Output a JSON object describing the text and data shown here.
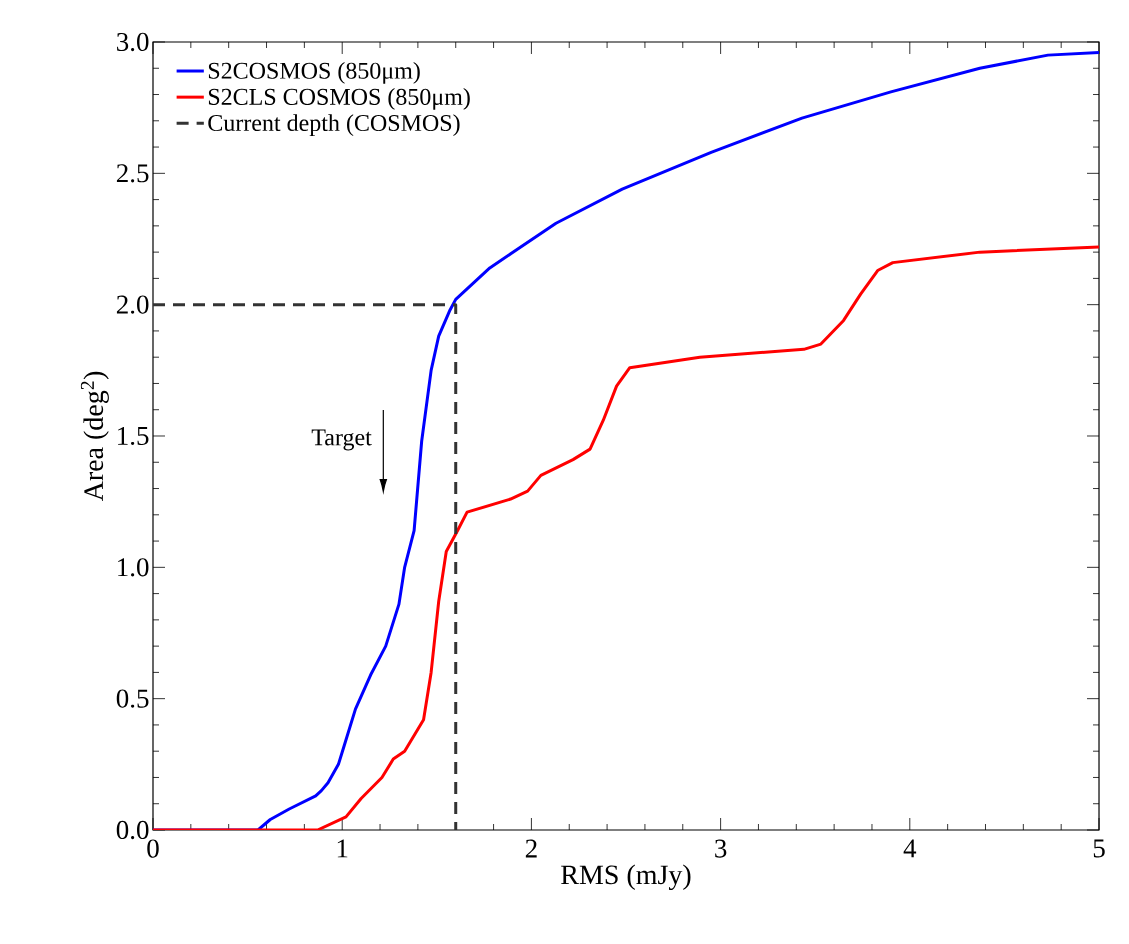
{
  "chart_data": {
    "type": "line",
    "xlabel": "RMS (mJy)",
    "ylabel": "Area (deg$^{2}$)",
    "xlim": [
      0,
      5
    ],
    "ylim": [
      0,
      3.0
    ],
    "xticks": [
      0,
      1,
      2,
      3,
      4,
      5
    ],
    "yticks": [
      {
        "value": 0,
        "label": "0.0"
      },
      {
        "value": 0.5,
        "label": "0.5"
      },
      {
        "value": 1,
        "label": "1.0"
      },
      {
        "value": 1.5,
        "label": "1.5"
      },
      {
        "value": 2,
        "label": "2.0"
      },
      {
        "value": 2.5,
        "label": "2.5"
      },
      {
        "value": 3,
        "label": "3.0"
      }
    ],
    "legend": "top left",
    "grid": false,
    "series": [
      {
        "name": "S2COSMOS (850μm)",
        "color": "#0000ff",
        "x": [
          0,
          0.555,
          0.62,
          0.72,
          0.86,
          0.89,
          0.925,
          0.98,
          1.01,
          1.07,
          1.15,
          1.23,
          1.3,
          1.33,
          1.38,
          1.42,
          1.47,
          1.51,
          1.57,
          1.6,
          1.78,
          2.13,
          2.48,
          2.95,
          3.43,
          3.9,
          4.37,
          4.73,
          5.0
        ],
        "values": [
          0,
          0,
          0.04,
          0.08,
          0.13,
          0.15,
          0.18,
          0.25,
          0.32,
          0.46,
          0.59,
          0.7,
          0.86,
          1.0,
          1.14,
          1.48,
          1.75,
          1.88,
          1.98,
          2.02,
          2.14,
          2.31,
          2.44,
          2.58,
          2.71,
          2.81,
          2.9,
          2.95,
          2.96
        ]
      },
      {
        "name": "S2CLS COSMOS (850μm)",
        "color": "#ff0000",
        "x": [
          0,
          0.87,
          1.02,
          1.1,
          1.21,
          1.27,
          1.33,
          1.43,
          1.47,
          1.51,
          1.55,
          1.61,
          1.66,
          1.89,
          1.98,
          2.05,
          2.22,
          2.31,
          2.38,
          2.45,
          2.52,
          2.89,
          3.44,
          3.53,
          3.65,
          3.74,
          3.83,
          3.91,
          4.37,
          5.0
        ],
        "values": [
          0,
          0,
          0.05,
          0.12,
          0.2,
          0.27,
          0.3,
          0.42,
          0.6,
          0.87,
          1.06,
          1.14,
          1.21,
          1.26,
          1.29,
          1.35,
          1.41,
          1.45,
          1.56,
          1.69,
          1.76,
          1.8,
          1.83,
          1.85,
          1.94,
          2.04,
          2.13,
          2.16,
          2.2,
          2.22
        ]
      },
      {
        "name": "Current depth (COSMOS)",
        "color": "#333333",
        "line_style": "dashed",
        "x": [
          0,
          1.6,
          1.6
        ],
        "values": [
          2.0,
          2.0,
          0
        ]
      }
    ],
    "annotations": [
      "Target"
    ]
  }
}
